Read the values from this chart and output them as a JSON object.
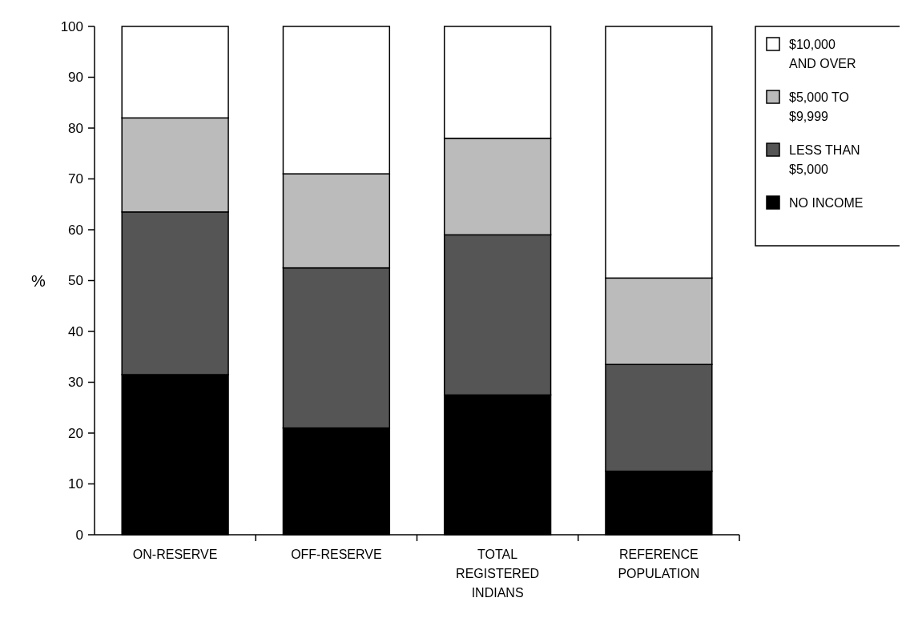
{
  "chart_data": {
    "type": "bar",
    "stacked": true,
    "ylabel": "%",
    "categories": [
      "ON-RESERVE",
      "OFF-RESERVE",
      "TOTAL REGISTERED INDIANS",
      "REFERENCE POPULATION"
    ],
    "series": [
      {
        "name": "NO INCOME",
        "color": "#000000",
        "values": [
          31.5,
          21,
          27.5,
          12.5
        ]
      },
      {
        "name": "LESS THAN $5,000",
        "color": "#555555",
        "values": [
          32,
          31.5,
          31.5,
          21
        ]
      },
      {
        "name": "$5,000 TO $9,999",
        "color": "#bbbbbb",
        "values": [
          18.5,
          18.5,
          19,
          17
        ]
      },
      {
        "name": "$10,000 AND OVER",
        "color": "#ffffff",
        "values": [
          18,
          29,
          22,
          49.5
        ]
      }
    ],
    "ylim": [
      0,
      100
    ],
    "yticks": [
      0,
      10,
      20,
      30,
      40,
      50,
      60,
      70,
      80,
      90,
      100
    ],
    "legend": "top right"
  }
}
